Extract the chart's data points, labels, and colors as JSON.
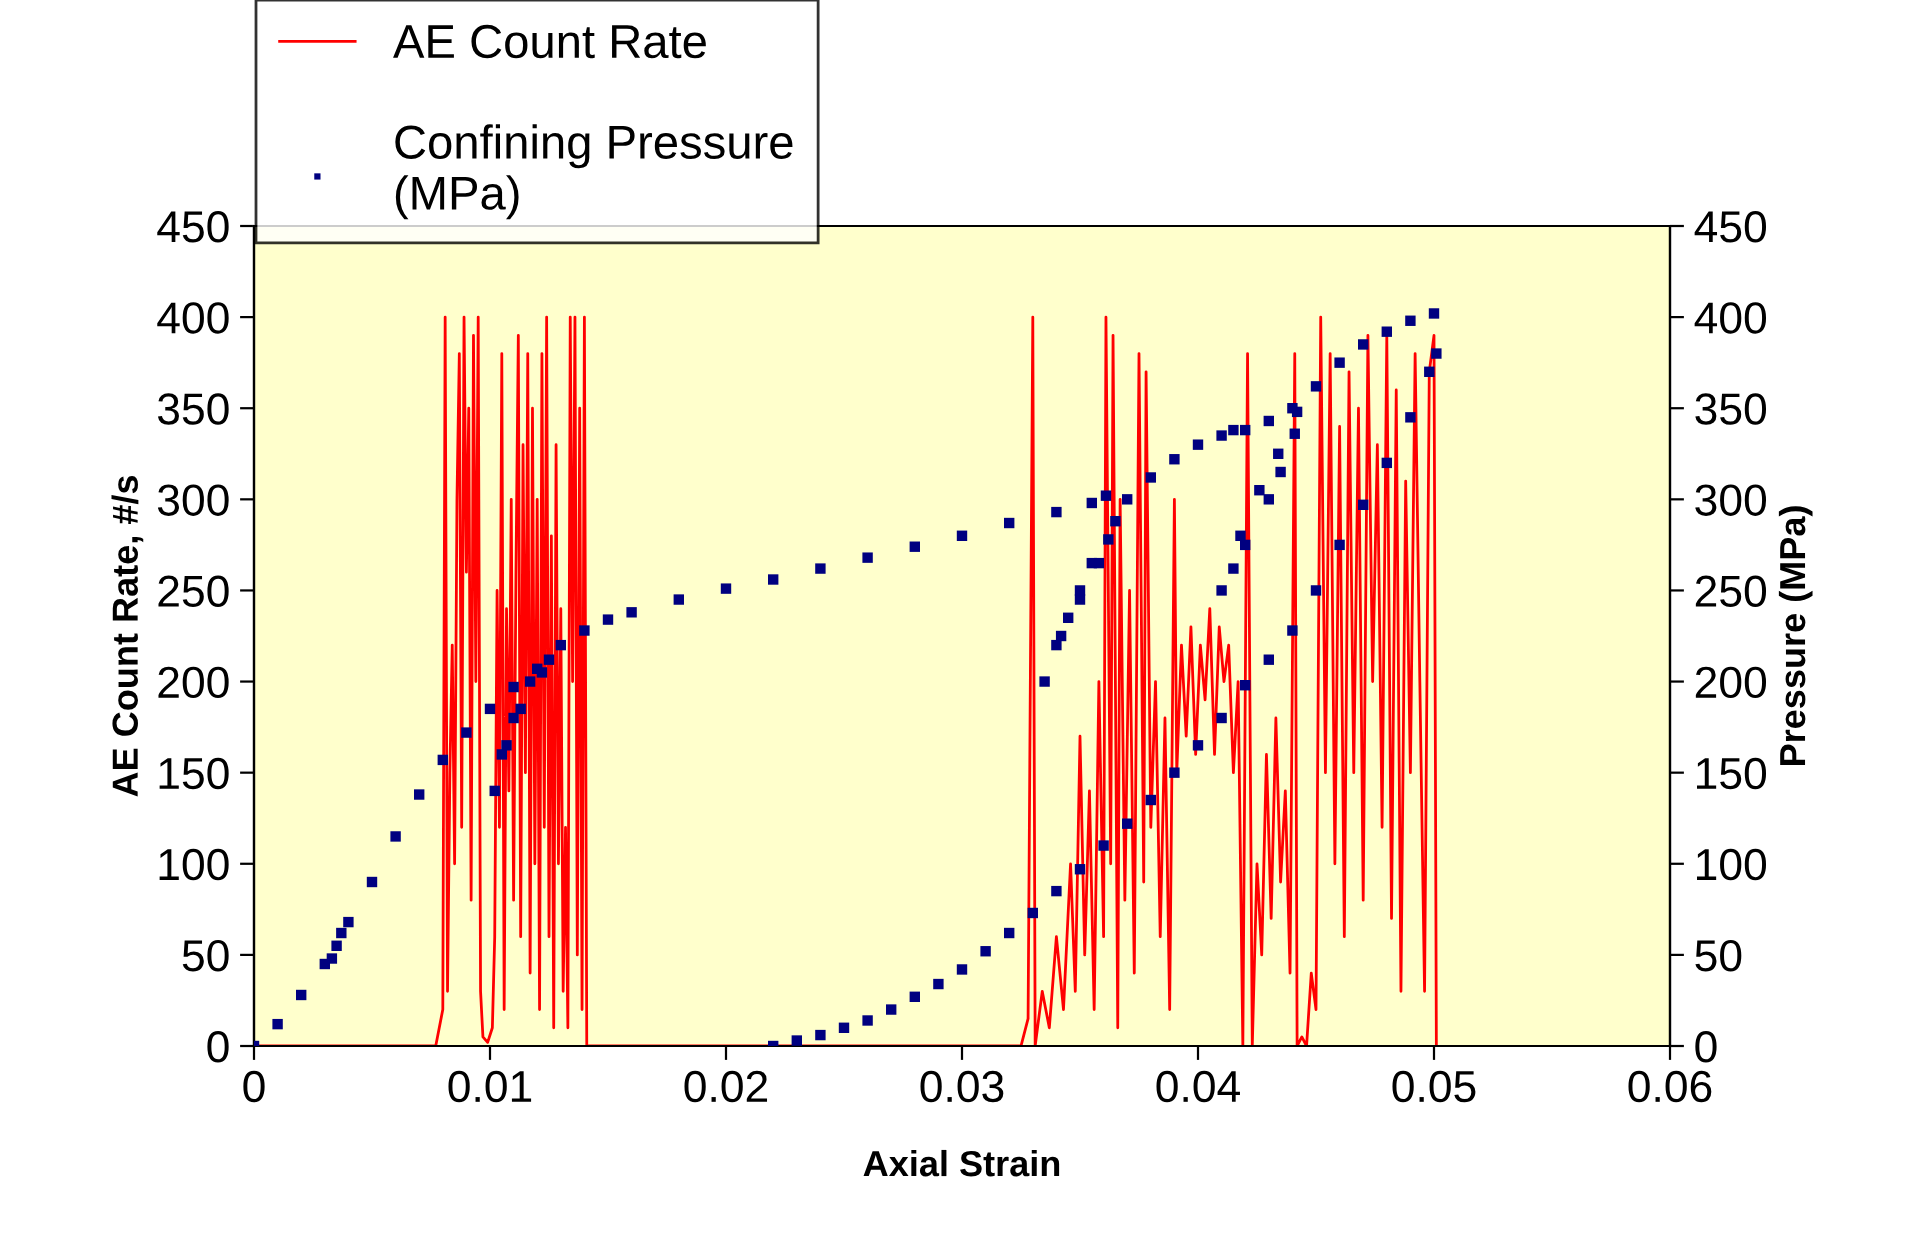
{
  "chart_data": {
    "type": "line",
    "xlabel": "Axial Strain",
    "ylabel": "AE Count Rate, #/s",
    "y2label": "Pressure (MPa)",
    "xlim": [
      0,
      0.06
    ],
    "xticks": [
      0,
      0.01,
      0.02,
      0.03,
      0.04,
      0.05,
      0.06
    ],
    "ylim": [
      0,
      450
    ],
    "yticks": [
      0,
      50,
      100,
      150,
      200,
      250,
      300,
      350,
      400,
      450
    ],
    "y2lim": [
      0,
      450
    ],
    "y2ticks": [
      0,
      50,
      100,
      150,
      200,
      250,
      300,
      350,
      400,
      450
    ],
    "grid": false,
    "legend": "top left",
    "series": [
      {
        "name": "AE Count Rate",
        "color": "#ff0000",
        "x": [
          0,
          0.0077,
          0.008,
          0.0081,
          0.0082,
          0.0083,
          0.0084,
          0.0085,
          0.0086,
          0.0087,
          0.0088,
          0.0089,
          0.009,
          0.0091,
          0.0092,
          0.0093,
          0.0094,
          0.0095,
          0.0096,
          0.0097,
          0.0099,
          0.0101,
          0.0102,
          0.0103,
          0.0104,
          0.0105,
          0.0106,
          0.0107,
          0.0108,
          0.0109,
          0.011,
          0.0111,
          0.0112,
          0.0113,
          0.0114,
          0.0115,
          0.0116,
          0.0117,
          0.0118,
          0.0119,
          0.012,
          0.0121,
          0.0122,
          0.0123,
          0.0124,
          0.0125,
          0.0126,
          0.0127,
          0.0128,
          0.0129,
          0.013,
          0.0131,
          0.0132,
          0.0133,
          0.0134,
          0.0135,
          0.0136,
          0.0137,
          0.0138,
          0.0139,
          0.014,
          0.0141,
          0.0325,
          0.0328,
          0.033,
          0.0331,
          0.0334,
          0.0337,
          0.034,
          0.0343,
          0.0346,
          0.0348,
          0.035,
          0.0352,
          0.0354,
          0.0356,
          0.0358,
          0.036,
          0.0361,
          0.0363,
          0.0364,
          0.0366,
          0.0367,
          0.0369,
          0.0371,
          0.0373,
          0.0375,
          0.0377,
          0.0378,
          0.038,
          0.0382,
          0.0384,
          0.0386,
          0.0388,
          0.039,
          0.0391,
          0.0393,
          0.0395,
          0.0397,
          0.0399,
          0.0401,
          0.0403,
          0.0405,
          0.0407,
          0.0409,
          0.0411,
          0.0413,
          0.0415,
          0.0417,
          0.0419,
          0.0421,
          0.0423,
          0.0425,
          0.0427,
          0.0429,
          0.0431,
          0.0433,
          0.0435,
          0.0437,
          0.0439,
          0.0441,
          0.0442,
          0.0444,
          0.0446,
          0.0448,
          0.045,
          0.0452,
          0.0454,
          0.0456,
          0.0458,
          0.046,
          0.0462,
          0.0464,
          0.0466,
          0.0468,
          0.047,
          0.0472,
          0.0474,
          0.0476,
          0.0478,
          0.048,
          0.0482,
          0.0484,
          0.0486,
          0.0488,
          0.049,
          0.0492,
          0.0494,
          0.0496,
          0.0498,
          0.05,
          0.0501
        ],
        "values": [
          0,
          0,
          20,
          400,
          30,
          150,
          220,
          100,
          300,
          380,
          120,
          400,
          260,
          350,
          80,
          390,
          200,
          400,
          30,
          5,
          2,
          10,
          60,
          250,
          120,
          380,
          20,
          240,
          140,
          300,
          80,
          260,
          390,
          60,
          330,
          150,
          380,
          40,
          350,
          100,
          300,
          20,
          380,
          120,
          400,
          60,
          280,
          10,
          330,
          100,
          240,
          30,
          120,
          10,
          400,
          200,
          400,
          50,
          350,
          20,
          400,
          0,
          0,
          15,
          400,
          0,
          30,
          10,
          60,
          20,
          100,
          30,
          170,
          50,
          140,
          20,
          200,
          60,
          400,
          100,
          390,
          10,
          300,
          80,
          250,
          40,
          380,
          90,
          370,
          120,
          200,
          60,
          180,
          20,
          300,
          150,
          220,
          170,
          230,
          160,
          220,
          190,
          240,
          160,
          230,
          200,
          220,
          150,
          200,
          0,
          380,
          0,
          100,
          50,
          160,
          70,
          180,
          90,
          140,
          40,
          380,
          0,
          5,
          0,
          40,
          20,
          400,
          150,
          380,
          100,
          340,
          60,
          370,
          150,
          350,
          80,
          390,
          200,
          330,
          120,
          390,
          70,
          360,
          30,
          310,
          150,
          380,
          200,
          30,
          370,
          390,
          0
        ]
      },
      {
        "name": "Confining Pressure (MPa)",
        "type": "scatter",
        "axis": "y2",
        "color": "#000080",
        "marker": "square",
        "x": [
          0,
          0.001,
          0.002,
          0.003,
          0.0035,
          0.0037,
          0.0033,
          0.004,
          0.005,
          0.006,
          0.007,
          0.008,
          0.009,
          0.01,
          0.011,
          0.012,
          0.0117,
          0.011,
          0.0105,
          0.0102,
          0.0107,
          0.0113,
          0.0122,
          0.0125,
          0.013,
          0.014,
          0.015,
          0.016,
          0.018,
          0.02,
          0.022,
          0.024,
          0.026,
          0.028,
          0.03,
          0.032,
          0.034,
          0.0355,
          0.0361,
          0.0362,
          0.0355,
          0.035,
          0.0345,
          0.034,
          0.0335,
          0.0342,
          0.035,
          0.0358,
          0.0365,
          0.037,
          0.038,
          0.039,
          0.04,
          0.041,
          0.0415,
          0.042,
          0.043,
          0.044,
          0.0441,
          0.0435,
          0.043,
          0.042,
          0.0415,
          0.041,
          0.0418,
          0.0426,
          0.0434,
          0.0442,
          0.045,
          0.046,
          0.047,
          0.048,
          0.049,
          0.05,
          0.0501,
          0.0498,
          0.049,
          0.048,
          0.047,
          0.046,
          0.045,
          0.044,
          0.043,
          0.042,
          0.041,
          0.04,
          0.039,
          0.038,
          0.037,
          0.036,
          0.035,
          0.034,
          0.033,
          0.032,
          0.031,
          0.03,
          0.029,
          0.028,
          0.027,
          0.026,
          0.025,
          0.024,
          0.023,
          0.022
        ],
        "values": [
          0,
          12,
          28,
          45,
          55,
          62,
          48,
          68,
          90,
          115,
          138,
          157,
          172,
          185,
          197,
          207,
          200,
          180,
          160,
          140,
          165,
          185,
          205,
          212,
          220,
          228,
          234,
          238,
          245,
          251,
          256,
          262,
          268,
          274,
          280,
          287,
          293,
          298,
          302,
          278,
          265,
          250,
          235,
          220,
          200,
          225,
          245,
          265,
          288,
          300,
          312,
          322,
          330,
          335,
          338,
          338,
          343,
          350,
          336,
          315,
          300,
          275,
          262,
          250,
          280,
          305,
          325,
          348,
          362,
          375,
          385,
          392,
          398,
          402,
          380,
          370,
          345,
          320,
          297,
          275,
          250,
          228,
          212,
          198,
          180,
          165,
          150,
          135,
          122,
          110,
          97,
          85,
          73,
          62,
          52,
          42,
          34,
          27,
          20,
          14,
          10,
          6,
          3,
          0
        ]
      }
    ]
  }
}
